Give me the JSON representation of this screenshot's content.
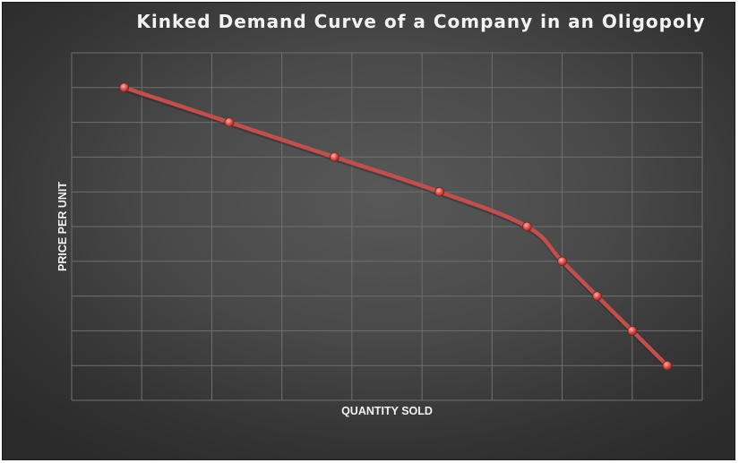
{
  "chart_data": {
    "type": "line",
    "title": "Kinked Demand Curve of a Company in an Oligopoly",
    "xlabel": "QUANTITY SOLD",
    "ylabel": "PRICE PER UNIT",
    "xlim": [
      0,
      9
    ],
    "ylim": [
      0,
      10
    ],
    "grid": true,
    "legend": "none",
    "series": [
      {
        "x": [
          0.75,
          2.25,
          3.75,
          5.25,
          6.5,
          7,
          7.5,
          8,
          8.5
        ],
        "y": [
          9,
          8,
          7,
          6,
          5,
          4,
          3,
          2,
          1
        ]
      }
    ],
    "colors": {
      "line": "#c0504d",
      "marker": "#d9534f",
      "grid": "#6f6f6f",
      "text": "#f2f2f2"
    }
  }
}
